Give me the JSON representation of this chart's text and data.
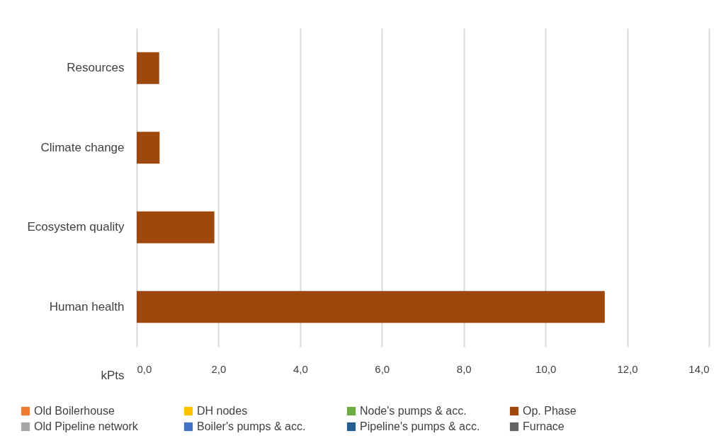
{
  "chart_data": {
    "type": "bar",
    "orientation": "horizontal",
    "categories": [
      "Resources",
      "Climate change",
      "Ecosystem quality",
      "Human health"
    ],
    "series": [
      {
        "name": "Old Boilerhouse",
        "color": "#ed7d31",
        "values": [
          0,
          0,
          0,
          0
        ]
      },
      {
        "name": "Old Pipeline network",
        "color": "#a5a5a5",
        "values": [
          0,
          0,
          0,
          0
        ]
      },
      {
        "name": "DH nodes",
        "color": "#ffc000",
        "values": [
          0,
          0,
          0,
          0
        ]
      },
      {
        "name": "Boiler's pumps & acc.",
        "color": "#4472c4",
        "values": [
          0,
          0,
          0,
          0
        ]
      },
      {
        "name": "Node's pumps & acc.",
        "color": "#70ad47",
        "values": [
          0,
          0,
          0,
          0
        ]
      },
      {
        "name": "Pipeline's pumps & acc.",
        "color": "#255e91",
        "values": [
          0,
          0,
          0,
          0
        ]
      },
      {
        "name": "Op. Phase",
        "color": "#9e480e",
        "values": [
          0.55,
          0.56,
          1.9,
          11.45
        ]
      },
      {
        "name": "Furnace",
        "color": "#636363",
        "values": [
          0,
          0,
          0,
          0
        ]
      }
    ],
    "xlabel": "kPts",
    "xlim": [
      0,
      14
    ],
    "xticks": [
      {
        "value": 0,
        "label": "0,0"
      },
      {
        "value": 2,
        "label": "2,0"
      },
      {
        "value": 4,
        "label": "4,0"
      },
      {
        "value": 6,
        "label": "6,0"
      },
      {
        "value": 8,
        "label": "8,0"
      },
      {
        "value": 10,
        "label": "10,0"
      },
      {
        "value": 12,
        "label": "12,0"
      },
      {
        "value": 14,
        "label": "14,0"
      }
    ],
    "grid": "x",
    "legend": "bottom"
  }
}
